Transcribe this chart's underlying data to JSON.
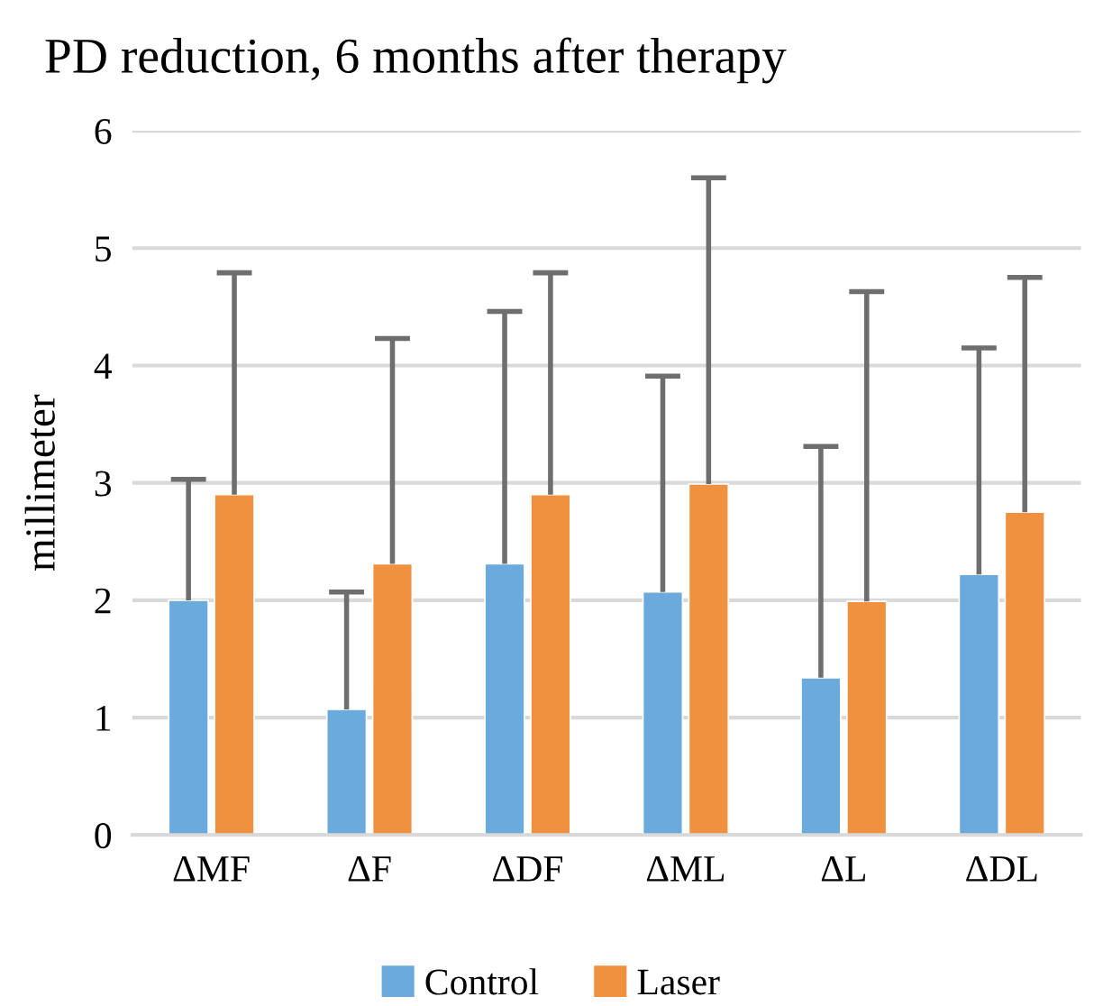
{
  "chart_data": {
    "type": "bar",
    "title": "PD reduction, 6 months after therapy",
    "ylabel": "millimeter",
    "categories": [
      "ΔMF",
      "ΔF",
      "ΔDF",
      "ΔML",
      "ΔL",
      "ΔDL"
    ],
    "series": [
      {
        "name": "Control",
        "color": "#6aaadc",
        "values": [
          2.0,
          1.07,
          2.31,
          2.07,
          1.34,
          2.22
        ],
        "errors": [
          [
            2.0,
            3.03
          ],
          [
            1.07,
            2.07
          ],
          [
            2.31,
            4.46
          ],
          [
            2.07,
            3.91
          ],
          [
            1.34,
            3.31
          ],
          [
            2.22,
            4.15
          ]
        ]
      },
      {
        "name": "Laser",
        "color": "#f0913f",
        "values": [
          2.9,
          2.31,
          2.9,
          2.99,
          1.99,
          2.75
        ],
        "errors": [
          [
            2.9,
            4.79
          ],
          [
            2.31,
            4.23
          ],
          [
            2.9,
            4.79
          ],
          [
            2.99,
            5.6
          ],
          [
            1.99,
            4.63
          ],
          [
            2.75,
            4.75
          ]
        ]
      }
    ],
    "ylim": [
      0,
      6
    ],
    "yticks": [
      0,
      1,
      2,
      3,
      4,
      5,
      6
    ],
    "grid": "y",
    "legend": "bottom"
  }
}
